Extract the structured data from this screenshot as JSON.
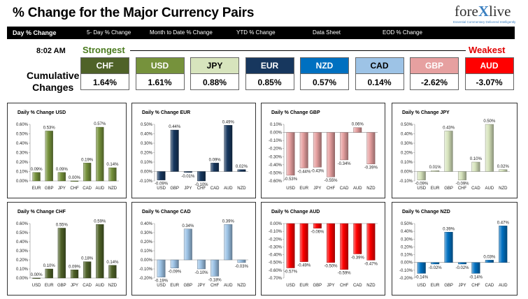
{
  "header": {
    "title": "% Change for the Major Currency Pairs",
    "logo_pre": "fore",
    "logo_x": "X",
    "logo_post": "live",
    "logo_tagline": "Essential Commentary Delivered Intelligently"
  },
  "tabs": [
    {
      "label": "Day % Change",
      "active": true
    },
    {
      "label": "5- Day % Change",
      "active": false
    },
    {
      "label": "Month to Date % Change",
      "active": false
    },
    {
      "label": "YTD % Change",
      "active": false
    },
    {
      "label": "Data Sheet",
      "active": false
    },
    {
      "label": "EOD % Change",
      "active": false
    }
  ],
  "time": "8:02 AM",
  "rank": {
    "strongest_label": "Strongest",
    "weakest_label": "Weakest",
    "cumulative_label": [
      "Cumulative",
      "Changes"
    ],
    "items": [
      {
        "currency": "CHF",
        "value": "1.64%",
        "bg": "#4f6228",
        "fg": "#ffffff"
      },
      {
        "currency": "USD",
        "value": "1.61%",
        "bg": "#76923c",
        "fg": "#ffffff"
      },
      {
        "currency": "JPY",
        "value": "0.88%",
        "bg": "#d7e4bd",
        "fg": "#000000"
      },
      {
        "currency": "EUR",
        "value": "0.85%",
        "bg": "#17375e",
        "fg": "#ffffff"
      },
      {
        "currency": "NZD",
        "value": "0.57%",
        "bg": "#0070c0",
        "fg": "#ffffff"
      },
      {
        "currency": "CAD",
        "value": "0.14%",
        "bg": "#9dc3e6",
        "fg": "#000000"
      },
      {
        "currency": "GBP",
        "value": "-2.62%",
        "bg": "#e6a0a0",
        "fg": "#ffffff"
      },
      {
        "currency": "AUD",
        "value": "-3.07%",
        "bg": "#ff0000",
        "fg": "#ffffff"
      }
    ]
  },
  "chart_data": [
    {
      "type": "bar",
      "title": "Daily % Change USD",
      "color": "#76923c",
      "categories": [
        "EUR",
        "GBP",
        "JPY",
        "CHF",
        "CAD",
        "AUD",
        "NZD"
      ],
      "values": [
        0.09,
        0.53,
        0.09,
        0.0,
        0.19,
        0.57,
        0.14
      ],
      "labels": [
        "0.09%",
        "0.53%",
        "0.09%",
        "0.00%",
        "0.19%",
        "0.57%",
        "0.14%"
      ],
      "ylim": [
        0,
        0.6
      ],
      "yticks": [
        "0.00%",
        "0.10%",
        "0.20%",
        "0.30%",
        "0.40%",
        "0.50%",
        "0.60%"
      ]
    },
    {
      "type": "bar",
      "title": "Daily % Change EUR",
      "color": "#17375e",
      "categories": [
        "USD",
        "GBP",
        "JPY",
        "CHF",
        "CAD",
        "AUD",
        "NZD"
      ],
      "values": [
        -0.09,
        0.44,
        -0.01,
        -0.1,
        0.09,
        0.49,
        0.02
      ],
      "labels": [
        "-0.09%",
        "0.44%",
        "-0.01%",
        "-0.10%",
        "0.09%",
        "0.49%",
        "0.02%"
      ],
      "ylim": [
        -0.1,
        0.5
      ],
      "yticks": [
        "-0.10%",
        "0.00%",
        "0.10%",
        "0.20%",
        "0.30%",
        "0.40%",
        "0.50%"
      ]
    },
    {
      "type": "bar",
      "title": "Daily % Change GBP",
      "color": "#e6a0a0",
      "categories": [
        "USD",
        "EUR",
        "JPY",
        "CHF",
        "CAD",
        "AUD",
        "NZD"
      ],
      "values": [
        -0.53,
        -0.44,
        -0.43,
        -0.55,
        -0.34,
        0.06,
        -0.39
      ],
      "labels": [
        "-0.53%",
        "-0.44%",
        "-0.43%",
        "-0.55%",
        "-0.34%",
        "0.06%",
        "-0.39%"
      ],
      "ylim": [
        -0.6,
        0.1
      ],
      "yticks": [
        "-0.60%",
        "-0.50%",
        "-0.40%",
        "-0.30%",
        "-0.20%",
        "-0.10%",
        "0.00%",
        "0.10%"
      ]
    },
    {
      "type": "bar",
      "title": "Daily % Change JPY",
      "color": "#d7e4bd",
      "categories": [
        "USD",
        "EUR",
        "GBP",
        "CHF",
        "CAD",
        "AUD",
        "NZD"
      ],
      "values": [
        -0.09,
        0.01,
        0.43,
        -0.09,
        0.1,
        0.5,
        0.02
      ],
      "labels": [
        "-0.09%",
        "0.01%",
        "0.43%",
        "-0.09%",
        "0.10%",
        "0.50%",
        "0.02%"
      ],
      "ylim": [
        -0.1,
        0.5
      ],
      "yticks": [
        "-0.10%",
        "0.00%",
        "0.10%",
        "0.20%",
        "0.30%",
        "0.40%",
        "0.50%"
      ]
    },
    {
      "type": "bar",
      "title": "Daily % Change CHF",
      "color": "#4f6228",
      "categories": [
        "USD",
        "EUR",
        "GBP",
        "JPY",
        "CAD",
        "AUD",
        "NZD"
      ],
      "values": [
        0.0,
        0.1,
        0.55,
        0.09,
        0.18,
        0.59,
        0.14
      ],
      "labels": [
        "0.00%",
        "0.10%",
        "0.55%",
        "0.09%",
        "0.18%",
        "0.59%",
        "0.14%"
      ],
      "ylim": [
        0,
        0.6
      ],
      "yticks": [
        "0.00%",
        "0.10%",
        "0.20%",
        "0.30%",
        "0.40%",
        "0.50%",
        "0.60%"
      ]
    },
    {
      "type": "bar",
      "title": "Daily % Change CAD",
      "color": "#9dc3e6",
      "categories": [
        "USD",
        "EUR",
        "GBP",
        "JPY",
        "CHF",
        "AUD",
        "NZD"
      ],
      "values": [
        -0.19,
        -0.09,
        0.34,
        -0.1,
        -0.18,
        0.39,
        -0.03
      ],
      "labels": [
        "-0.19%",
        "-0.09%",
        "0.34%",
        "-0.10%",
        "-0.18%",
        "0.39%",
        "-0.03%"
      ],
      "ylim": [
        -0.2,
        0.4
      ],
      "yticks": [
        "-0.20%",
        "-0.10%",
        "0.00%",
        "0.10%",
        "0.20%",
        "0.30%",
        "0.40%"
      ]
    },
    {
      "type": "bar",
      "title": "Daily % Change AUD",
      "color": "#ff0000",
      "categories": [
        "USD",
        "EUR",
        "GBP",
        "JPY",
        "CHF",
        "CAD",
        "NZD"
      ],
      "values": [
        -0.57,
        -0.49,
        -0.06,
        -0.5,
        -0.59,
        -0.39,
        -0.47
      ],
      "labels": [
        "-0.57%",
        "-0.49%",
        "-0.06%",
        "-0.50%",
        "-0.59%",
        "-0.39%",
        "-0.47%"
      ],
      "ylim": [
        -0.7,
        0.0
      ],
      "yticks": [
        "-0.70%",
        "-0.60%",
        "-0.50%",
        "-0.40%",
        "-0.30%",
        "-0.20%",
        "-0.10%",
        "0.00%"
      ]
    },
    {
      "type": "bar",
      "title": "Daily % Change NZD",
      "color": "#0070c0",
      "categories": [
        "USD",
        "EUR",
        "GBP",
        "JPY",
        "CHF",
        "CAD",
        "AUD"
      ],
      "values": [
        -0.14,
        -0.02,
        0.39,
        -0.02,
        -0.14,
        0.03,
        0.47
      ],
      "labels": [
        "-0.14%",
        "-0.02%",
        "0.39%",
        "-0.02%",
        "-0.14%",
        "0.03%",
        "0.47%"
      ],
      "ylim": [
        -0.2,
        0.5
      ],
      "yticks": [
        "-0.20%",
        "-0.10%",
        "0.00%",
        "0.10%",
        "0.20%",
        "0.30%",
        "0.40%",
        "0.50%"
      ]
    }
  ]
}
